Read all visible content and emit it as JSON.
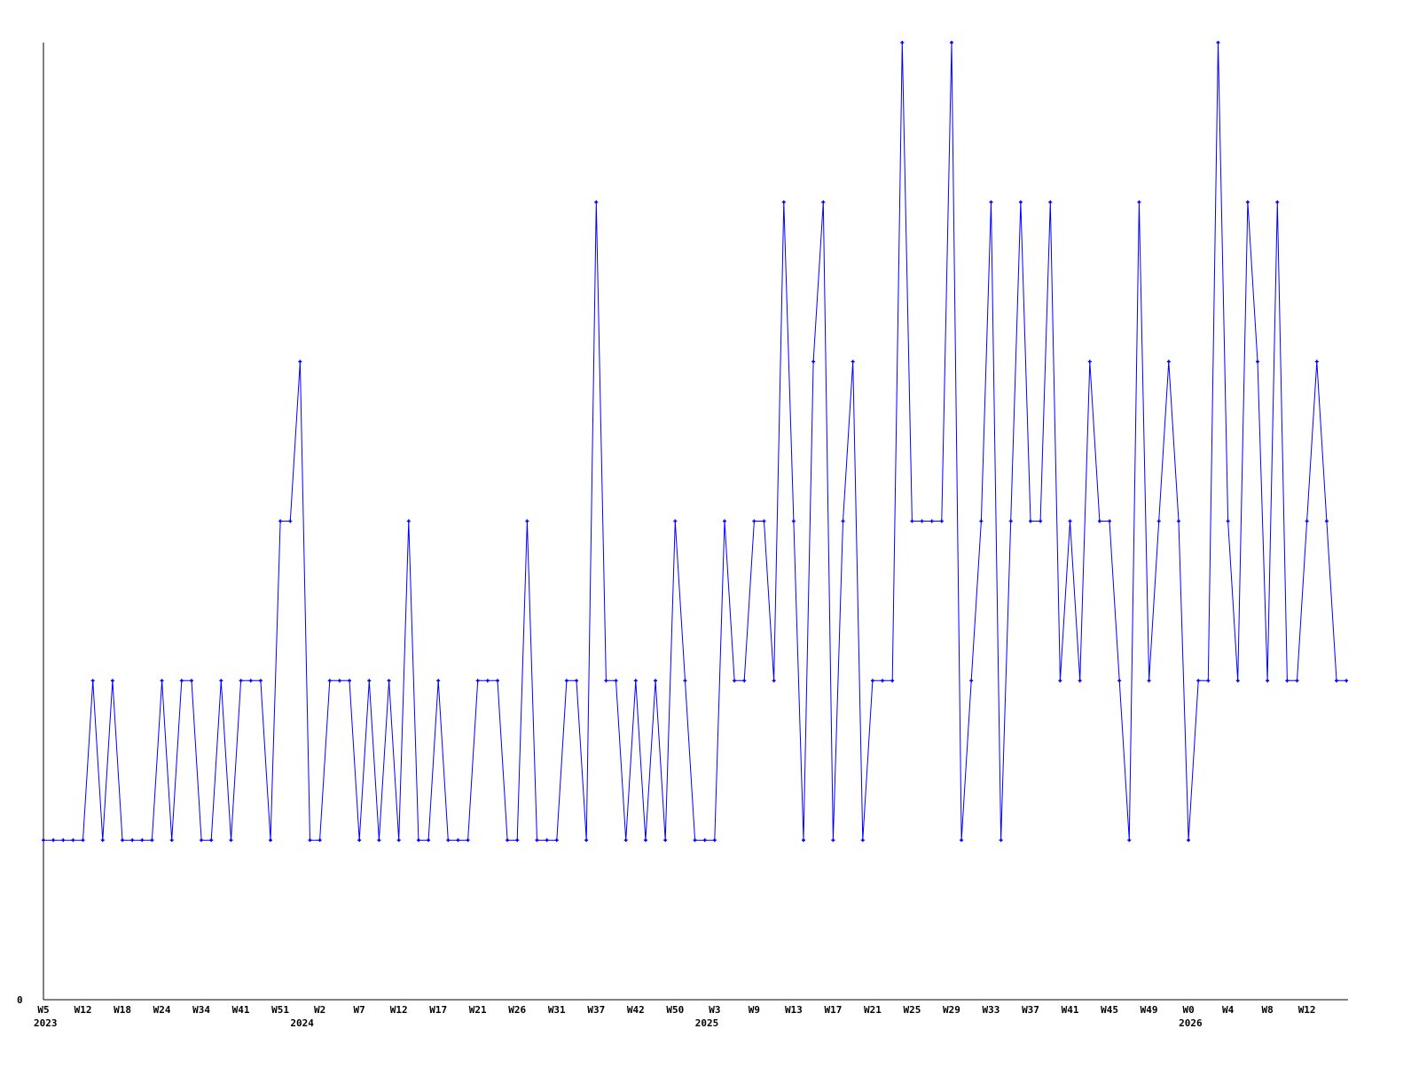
{
  "chart_data": {
    "type": "line",
    "title": "",
    "xlabel": "",
    "ylabel": "",
    "ylim": [
      0,
      6
    ],
    "y_tick_labels": [
      {
        "value": 0,
        "label": "0"
      }
    ],
    "grid": false,
    "line_color": "#0000ff",
    "axis_color": "#000000",
    "values": [
      1,
      1,
      1,
      1,
      1,
      2,
      1,
      2,
      1,
      1,
      1,
      1,
      2,
      1,
      2,
      2,
      1,
      1,
      2,
      1,
      2,
      2,
      2,
      1,
      3,
      3,
      4,
      1,
      1,
      2,
      2,
      2,
      1,
      2,
      1,
      2,
      1,
      3,
      1,
      1,
      2,
      1,
      1,
      1,
      2,
      2,
      2,
      1,
      1,
      3,
      1,
      1,
      1,
      2,
      2,
      1,
      5,
      2,
      2,
      1,
      2,
      1,
      2,
      1,
      3,
      2,
      1,
      1,
      1,
      3,
      2,
      2,
      3,
      3,
      2,
      5,
      3,
      1,
      4,
      5,
      1,
      3,
      4,
      1,
      2,
      2,
      2,
      6,
      3,
      3,
      3,
      3,
      6,
      1,
      2,
      3,
      5,
      1,
      3,
      5,
      3,
      3,
      5,
      2,
      3,
      2,
      4,
      3,
      3,
      2,
      1,
      5,
      2,
      3,
      4,
      3,
      1,
      2,
      2,
      6,
      3,
      2,
      5,
      4,
      2,
      5,
      2,
      2,
      3,
      4,
      3,
      2,
      2
    ],
    "x_tick_labels": [
      {
        "index": 0,
        "label": "W5"
      },
      {
        "index": 4,
        "label": "W12"
      },
      {
        "index": 8,
        "label": "W18"
      },
      {
        "index": 12,
        "label": "W24"
      },
      {
        "index": 16,
        "label": "W34"
      },
      {
        "index": 20,
        "label": "W41"
      },
      {
        "index": 24,
        "label": "W51"
      },
      {
        "index": 28,
        "label": "W2"
      },
      {
        "index": 32,
        "label": "W7"
      },
      {
        "index": 36,
        "label": "W12"
      },
      {
        "index": 40,
        "label": "W17"
      },
      {
        "index": 44,
        "label": "W21"
      },
      {
        "index": 48,
        "label": "W26"
      },
      {
        "index": 52,
        "label": "W31"
      },
      {
        "index": 56,
        "label": "W37"
      },
      {
        "index": 60,
        "label": "W42"
      },
      {
        "index": 64,
        "label": "W50"
      },
      {
        "index": 68,
        "label": "W3"
      },
      {
        "index": 72,
        "label": "W9"
      },
      {
        "index": 76,
        "label": "W13"
      },
      {
        "index": 80,
        "label": "W17"
      },
      {
        "index": 84,
        "label": "W21"
      },
      {
        "index": 88,
        "label": "W25"
      },
      {
        "index": 92,
        "label": "W29"
      },
      {
        "index": 96,
        "label": "W33"
      },
      {
        "index": 100,
        "label": "W37"
      },
      {
        "index": 104,
        "label": "W41"
      },
      {
        "index": 108,
        "label": "W45"
      },
      {
        "index": 112,
        "label": "W49"
      },
      {
        "index": 116,
        "label": "W0"
      },
      {
        "index": 120,
        "label": "W4"
      },
      {
        "index": 124,
        "label": "W8"
      },
      {
        "index": 128,
        "label": "W12"
      }
    ],
    "year_labels": [
      {
        "index": 0,
        "label": "2023"
      },
      {
        "index": 26,
        "label": "2024"
      },
      {
        "index": 67,
        "label": "2025"
      },
      {
        "index": 116,
        "label": "2026"
      }
    ]
  }
}
